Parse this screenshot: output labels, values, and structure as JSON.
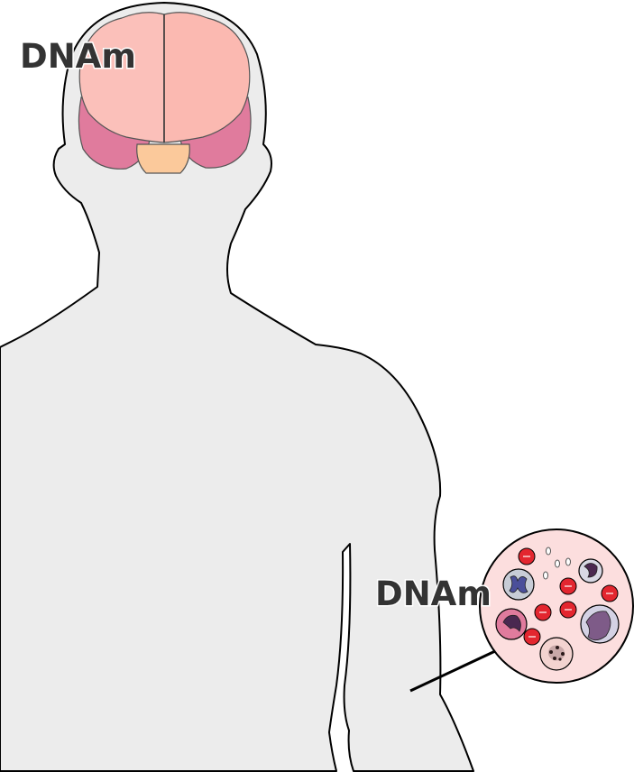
{
  "labels": {
    "brain": "DNAm",
    "blood": "DNAm"
  },
  "colors": {
    "body": "#ececec",
    "outline": "#000000",
    "cerebrum": "#fbbdb6",
    "temporal": "#e07b9d",
    "brainstem": "#fbc99b",
    "blood_bg": "#fcdede",
    "red_cell": "#e3262f",
    "text": "#333333"
  },
  "icons": [
    "human-silhouette",
    "brain-icon",
    "blood-cells-icon"
  ]
}
